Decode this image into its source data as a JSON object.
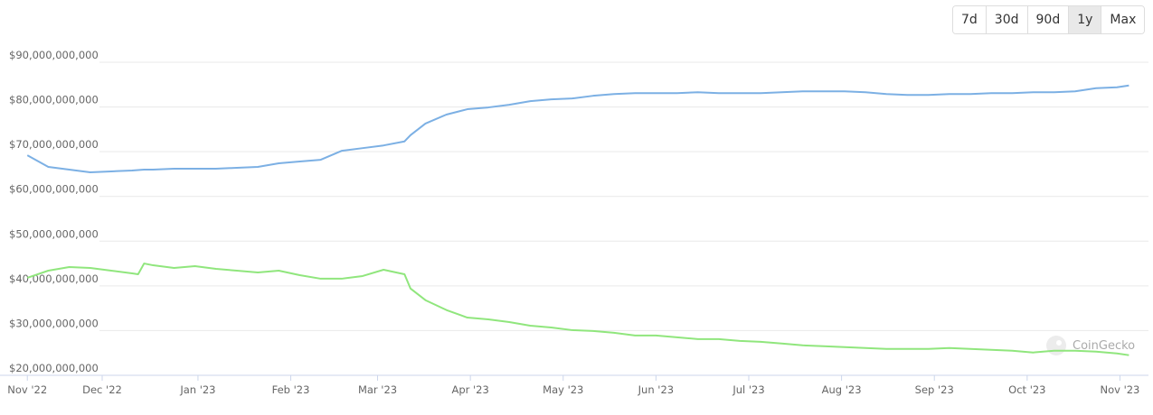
{
  "chart_data": {
    "type": "line",
    "x": [
      0,
      7,
      14,
      21,
      28,
      35,
      37,
      39,
      42,
      49,
      56,
      63,
      70,
      77,
      84,
      91,
      98,
      105,
      112,
      119,
      126,
      128,
      133,
      140,
      147,
      154,
      161,
      168,
      175,
      182,
      189,
      196,
      203,
      210,
      217,
      224,
      231,
      238,
      245,
      252,
      259,
      266,
      273,
      280,
      287,
      294,
      301,
      308,
      315,
      322,
      329,
      336,
      343,
      350,
      357,
      364,
      368
    ],
    "xlim": [
      -4,
      370
    ],
    "xticks": [
      {
        "value": 0,
        "label": "Nov '22"
      },
      {
        "value": 25,
        "label": "Dec '22"
      },
      {
        "value": 57,
        "label": "Jan '23"
      },
      {
        "value": 88,
        "label": "Feb '23"
      },
      {
        "value": 117,
        "label": "Mar '23"
      },
      {
        "value": 148,
        "label": "Apr '23"
      },
      {
        "value": 179,
        "label": "May '23"
      },
      {
        "value": 210,
        "label": "Jun '23"
      },
      {
        "value": 241,
        "label": "Jul '23"
      },
      {
        "value": 272,
        "label": "Aug '23"
      },
      {
        "value": 303,
        "label": "Sep '23"
      },
      {
        "value": 334,
        "label": "Oct '23"
      },
      {
        "value": 365,
        "label": "Nov '23"
      }
    ],
    "ylim": [
      20000000000.0,
      90000000000.0
    ],
    "yticks": [
      {
        "value": 20000000000.0,
        "label": "$20,000,000,000"
      },
      {
        "value": 30000000000.0,
        "label": "$30,000,000,000"
      },
      {
        "value": 40000000000.0,
        "label": "$40,000,000,000"
      },
      {
        "value": 50000000000.0,
        "label": "$50,000,000,000"
      },
      {
        "value": 60000000000.0,
        "label": "$60,000,000,000"
      },
      {
        "value": 70000000000.0,
        "label": "$70,000,000,000"
      },
      {
        "value": 80000000000.0,
        "label": "$80,000,000,000"
      },
      {
        "value": 90000000000.0,
        "label": "$90,000,000,000"
      }
    ],
    "grid": true,
    "series": [
      {
        "color": "#7cb0e4",
        "values": [
          69200000000.0,
          66600000000.0,
          66000000000.0,
          65400000000.0,
          65600000000.0,
          65800000000.0,
          65900000000.0,
          66000000000.0,
          66000000000.0,
          66200000000.0,
          66200000000.0,
          66200000000.0,
          66400000000.0,
          66600000000.0,
          67400000000.0,
          67800000000.0,
          68200000000.0,
          70200000000.0,
          70800000000.0,
          71400000000.0,
          72300000000.0,
          73700000000.0,
          76300000000.0,
          78300000000.0,
          79500000000.0,
          79900000000.0,
          80500000000.0,
          81300000000.0,
          81700000000.0,
          81900000000.0,
          82500000000.0,
          82900000000.0,
          83100000000.0,
          83100000000.0,
          83100000000.0,
          83300000000.0,
          83100000000.0,
          83100000000.0,
          83100000000.0,
          83300000000.0,
          83500000000.0,
          83500000000.0,
          83500000000.0,
          83300000000.0,
          82900000000.0,
          82700000000.0,
          82700000000.0,
          82900000000.0,
          82900000000.0,
          83100000000.0,
          83100000000.0,
          83300000000.0,
          83300000000.0,
          83500000000.0,
          84200000000.0,
          84400000000.0,
          84800000000.0
        ]
      },
      {
        "color": "#90e67d",
        "values": [
          41800000000.0,
          43400000000.0,
          44200000000.0,
          44000000000.0,
          43400000000.0,
          42800000000.0,
          42600000000.0,
          45000000000.0,
          44600000000.0,
          44000000000.0,
          44400000000.0,
          43800000000.0,
          43400000000.0,
          43000000000.0,
          43400000000.0,
          42400000000.0,
          41600000000.0,
          41600000000.0,
          42200000000.0,
          43600000000.0,
          42600000000.0,
          39400000000.0,
          36800000000.0,
          34600000000.0,
          32900000000.0,
          32500000000.0,
          31900000000.0,
          31100000000.0,
          30700000000.0,
          30100000000.0,
          29900000000.0,
          29500000000.0,
          28900000000.0,
          28900000000.0,
          28500000000.0,
          28100000000.0,
          28100000000.0,
          27700000000.0,
          27500000000.0,
          27100000000.0,
          26700000000.0,
          26500000000.0,
          26300000000.0,
          26100000000.0,
          25900000000.0,
          25900000000.0,
          25900000000.0,
          26100000000.0,
          25900000000.0,
          25700000000.0,
          25500000000.0,
          25100000000.0,
          25500000000.0,
          25500000000.0,
          25300000000.0,
          24900000000.0,
          24500000000.0
        ]
      }
    ]
  },
  "range_buttons": [
    "7d",
    "30d",
    "90d",
    "1y",
    "Max"
  ],
  "selected": "1y",
  "watermark": "CoinGecko"
}
